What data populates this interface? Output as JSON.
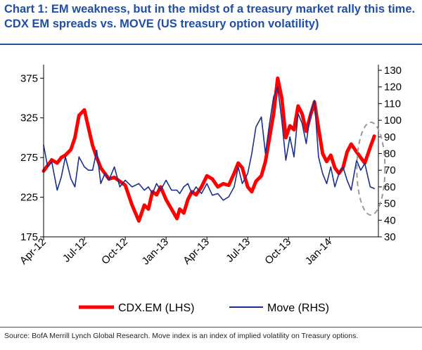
{
  "title": "Chart 1: EM weakness, but in the midst of a treasury market rally this time. CDX EM spreads vs. MOVE (US treasury option volatility)",
  "source": "Source: BofA Merrill Lynch Global Research. Move index is an index of implied volatility on Treasury options.",
  "chart_data": {
    "type": "line",
    "title": "CDX EM spreads vs. MOVE (US treasury option volatility)",
    "xlabel": "",
    "ylabel_left": "",
    "ylabel_right": "",
    "x_ticks": [
      "Apr-12",
      "Jul-12",
      "Oct-12",
      "Jan-13",
      "Apr-13",
      "Jul-13",
      "Oct-13",
      "Jan-14"
    ],
    "x_range": [
      0,
      24.6
    ],
    "ylim_left": [
      175,
      385
    ],
    "yticks_left": [
      175,
      225,
      275,
      325,
      375
    ],
    "ylim_right": [
      30,
      130
    ],
    "yticks_right": [
      30,
      40,
      50,
      60,
      70,
      80,
      90,
      100,
      110,
      120,
      130
    ],
    "legend": "bottom-center",
    "legend_entries": [
      "CDX.EM (LHS)",
      "Move (RHS)"
    ],
    "annotation": "dashed ellipse highlighting the most recent data (Jan-14 onward)",
    "series": [
      {
        "name": "CDX.EM (LHS)",
        "axis": "left",
        "color": "#ff0000",
        "x": [
          0,
          0.3,
          0.6,
          1.0,
          1.3,
          1.6,
          2.0,
          2.3,
          2.6,
          3.0,
          3.3,
          3.6,
          3.9,
          4.2,
          4.5,
          4.8,
          5.2,
          5.6,
          6.0,
          6.5,
          7.0,
          7.4,
          7.7,
          8.0,
          8.3,
          8.6,
          9.0,
          9.4,
          9.8,
          10.0,
          10.3,
          10.6,
          10.9,
          11.2,
          11.6,
          12.0,
          12.4,
          12.8,
          13.2,
          13.6,
          14.0,
          14.3,
          14.6,
          15.0,
          15.3,
          15.6,
          16.0,
          16.3,
          16.6,
          16.9,
          17.2,
          17.5,
          17.8,
          18.1,
          18.4,
          18.7,
          19.0,
          19.3,
          19.6,
          19.9,
          20.2,
          20.5,
          20.8,
          21.1,
          21.4,
          21.7,
          22.0,
          22.3,
          22.6,
          23.0,
          23.3,
          23.6,
          24.0,
          24.3
        ],
        "values": [
          258,
          265,
          272,
          268,
          275,
          278,
          285,
          300,
          328,
          335,
          312,
          290,
          275,
          262,
          255,
          248,
          250,
          245,
          240,
          215,
          195,
          215,
          210,
          232,
          228,
          238,
          222,
          210,
          198,
          210,
          205,
          222,
          232,
          228,
          238,
          252,
          248,
          238,
          242,
          240,
          255,
          268,
          262,
          238,
          232,
          245,
          252,
          270,
          300,
          330,
          375,
          350,
          300,
          315,
          310,
          340,
          330,
          308,
          328,
          345,
          312,
          280,
          270,
          278,
          262,
          255,
          262,
          282,
          292,
          282,
          275,
          268,
          288,
          302
        ]
      },
      {
        "name": "Move (RHS)",
        "axis": "right",
        "color": "#1a2f8f",
        "x": [
          0,
          0.3,
          0.6,
          1.0,
          1.3,
          1.6,
          2.0,
          2.3,
          2.6,
          3.0,
          3.3,
          3.6,
          3.9,
          4.2,
          4.5,
          4.8,
          5.2,
          5.6,
          6.0,
          6.5,
          7.0,
          7.4,
          7.7,
          8.0,
          8.3,
          8.6,
          9.0,
          9.4,
          9.8,
          10.0,
          10.3,
          10.6,
          10.9,
          11.2,
          11.6,
          12.0,
          12.4,
          12.8,
          13.2,
          13.6,
          14.0,
          14.3,
          14.6,
          15.0,
          15.3,
          15.6,
          16.0,
          16.3,
          16.6,
          16.9,
          17.2,
          17.5,
          17.8,
          18.1,
          18.4,
          18.7,
          19.0,
          19.3,
          19.6,
          19.9,
          20.2,
          20.5,
          20.8,
          21.1,
          21.4,
          21.7,
          22.0,
          22.3,
          22.6,
          23.0,
          23.3,
          23.6,
          24.0,
          24.3
        ],
        "values": [
          85,
          72,
          75,
          58,
          66,
          78,
          65,
          60,
          78,
          72,
          70,
          70,
          82,
          62,
          68,
          64,
          72,
          60,
          64,
          60,
          62,
          58,
          60,
          56,
          62,
          58,
          64,
          58,
          58,
          56,
          60,
          62,
          56,
          60,
          56,
          62,
          55,
          56,
          52,
          54,
          60,
          72,
          62,
          68,
          80,
          96,
          102,
          80,
          98,
          114,
          120,
          100,
          76,
          90,
          78,
          104,
          98,
          86,
          104,
          112,
          78,
          68,
          62,
          72,
          60,
          68,
          72,
          64,
          58,
          76,
          70,
          74,
          60,
          59
        ]
      }
    ]
  }
}
